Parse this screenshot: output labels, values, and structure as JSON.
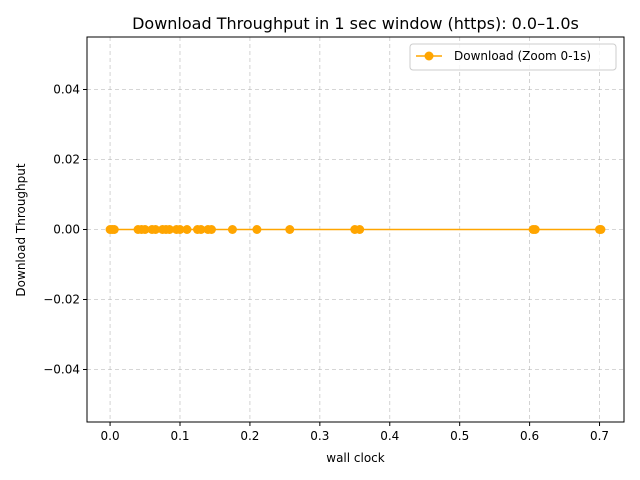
{
  "chart_data": {
    "type": "line",
    "title": "Download Throughput in 1 sec window (https): 0.0–1.0s",
    "xlabel": "wall clock",
    "ylabel": "Download Throughput",
    "xlim": [
      -0.033,
      0.735
    ],
    "ylim": [
      -0.055,
      0.055
    ],
    "x_ticks": [
      0.0,
      0.1,
      0.2,
      0.3,
      0.4,
      0.5,
      0.6,
      0.7
    ],
    "x_tick_labels": [
      "0.0",
      "0.1",
      "0.2",
      "0.3",
      "0.4",
      "0.5",
      "0.6",
      "0.7"
    ],
    "y_ticks": [
      -0.04,
      -0.02,
      0.0,
      0.02,
      0.04
    ],
    "y_tick_labels": [
      "−0.04",
      "−0.02",
      "0.00",
      "0.02",
      "0.04"
    ],
    "grid": true,
    "legend_position": "top-right",
    "series": [
      {
        "name": "Download (Zoom 0-1s)",
        "color": "#FFA500",
        "marker": "circle",
        "x": [
          0.0,
          0.003,
          0.006,
          0.04,
          0.045,
          0.05,
          0.06,
          0.065,
          0.075,
          0.08,
          0.085,
          0.095,
          0.1,
          0.11,
          0.125,
          0.13,
          0.14,
          0.145,
          0.175,
          0.21,
          0.257,
          0.35,
          0.357,
          0.605,
          0.608,
          0.7,
          0.702
        ],
        "y": [
          0,
          0,
          0,
          0,
          0,
          0,
          0,
          0,
          0,
          0,
          0,
          0,
          0,
          0,
          0,
          0,
          0,
          0,
          0,
          0,
          0,
          0,
          0,
          0,
          0,
          0,
          0
        ]
      }
    ]
  }
}
